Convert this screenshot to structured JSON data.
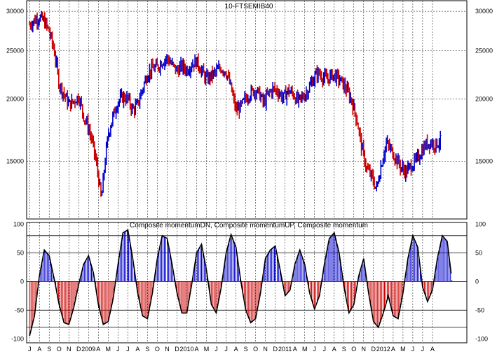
{
  "chart_data": [
    {
      "type": "ohlc",
      "title": "10-FTSEMIB40",
      "y_ticks": [
        15000,
        20000,
        25000,
        30000
      ],
      "ylim": [
        11500,
        31500
      ],
      "y_scale": "log",
      "grid": true,
      "up_color": "#0000cc",
      "down_color": "#cc0000",
      "series": [
        {
          "t": 0.0,
          "v": 28200
        },
        {
          "t": 0.5,
          "v": 28800
        },
        {
          "t": 1.0,
          "v": 29200
        },
        {
          "t": 1.5,
          "v": 28600
        },
        {
          "t": 2.0,
          "v": 27300
        },
        {
          "t": 2.5,
          "v": 25000
        },
        {
          "t": 3.0,
          "v": 21500
        },
        {
          "t": 3.5,
          "v": 20500
        },
        {
          "t": 4.0,
          "v": 19500
        },
        {
          "t": 4.5,
          "v": 19800
        },
        {
          "t": 5.0,
          "v": 20300
        },
        {
          "t": 5.5,
          "v": 18500
        },
        {
          "t": 6.0,
          "v": 17500
        },
        {
          "t": 6.5,
          "v": 16000
        },
        {
          "t": 7.0,
          "v": 14000
        },
        {
          "t": 7.3,
          "v": 12500
        },
        {
          "t": 7.6,
          "v": 14500
        },
        {
          "t": 8.0,
          "v": 17000
        },
        {
          "t": 8.5,
          "v": 18500
        },
        {
          "t": 9.0,
          "v": 19800
        },
        {
          "t": 9.5,
          "v": 20200
        },
        {
          "t": 10.0,
          "v": 20000
        },
        {
          "t": 10.5,
          "v": 19000
        },
        {
          "t": 11.0,
          "v": 19500
        },
        {
          "t": 11.5,
          "v": 21000
        },
        {
          "t": 12.0,
          "v": 22500
        },
        {
          "t": 12.5,
          "v": 23000
        },
        {
          "t": 13.0,
          "v": 23200
        },
        {
          "t": 13.5,
          "v": 23800
        },
        {
          "t": 14.0,
          "v": 24200
        },
        {
          "t": 14.5,
          "v": 23400
        },
        {
          "t": 15.0,
          "v": 22800
        },
        {
          "t": 15.5,
          "v": 23300
        },
        {
          "t": 16.0,
          "v": 22900
        },
        {
          "t": 16.5,
          "v": 23500
        },
        {
          "t": 17.0,
          "v": 23800
        },
        {
          "t": 17.5,
          "v": 22800
        },
        {
          "t": 18.0,
          "v": 21900
        },
        {
          "t": 18.5,
          "v": 22300
        },
        {
          "t": 19.0,
          "v": 22700
        },
        {
          "t": 19.5,
          "v": 23100
        },
        {
          "t": 20.0,
          "v": 22700
        },
        {
          "t": 20.5,
          "v": 21000
        },
        {
          "t": 21.0,
          "v": 19000
        },
        {
          "t": 21.5,
          "v": 19300
        },
        {
          "t": 22.0,
          "v": 20100
        },
        {
          "t": 22.5,
          "v": 20600
        },
        {
          "t": 23.0,
          "v": 20900
        },
        {
          "t": 23.5,
          "v": 20300
        },
        {
          "t": 23.8,
          "v": 19600
        },
        {
          "t": 24.3,
          "v": 20500
        },
        {
          "t": 24.8,
          "v": 21000
        },
        {
          "t": 25.3,
          "v": 20700
        },
        {
          "t": 25.8,
          "v": 20100
        },
        {
          "t": 26.3,
          "v": 20800
        },
        {
          "t": 26.8,
          "v": 20500
        },
        {
          "t": 27.3,
          "v": 19800
        },
        {
          "t": 27.8,
          "v": 20200
        },
        {
          "t": 28.3,
          "v": 20800
        },
        {
          "t": 28.8,
          "v": 21800
        },
        {
          "t": 29.3,
          "v": 22600
        },
        {
          "t": 29.8,
          "v": 22200
        },
        {
          "t": 30.3,
          "v": 21900
        },
        {
          "t": 30.8,
          "v": 22400
        },
        {
          "t": 31.3,
          "v": 22100
        },
        {
          "t": 31.8,
          "v": 21600
        },
        {
          "t": 32.3,
          "v": 20800
        },
        {
          "t": 32.8,
          "v": 19800
        },
        {
          "t": 33.3,
          "v": 18200
        },
        {
          "t": 33.8,
          "v": 16000
        },
        {
          "t": 34.3,
          "v": 14500
        },
        {
          "t": 34.8,
          "v": 14000
        },
        {
          "t": 35.3,
          "v": 13200
        },
        {
          "t": 35.8,
          "v": 14800
        },
        {
          "t": 36.3,
          "v": 16300
        },
        {
          "t": 36.8,
          "v": 15800
        },
        {
          "t": 37.3,
          "v": 15200
        },
        {
          "t": 37.8,
          "v": 14600
        },
        {
          "t": 38.3,
          "v": 14300
        },
        {
          "t": 38.8,
          "v": 14700
        },
        {
          "t": 39.3,
          "v": 15000
        },
        {
          "t": 39.8,
          "v": 15600
        },
        {
          "t": 40.3,
          "v": 16200
        },
        {
          "t": 40.8,
          "v": 16400
        },
        {
          "t": 41.3,
          "v": 16200
        },
        {
          "t": 41.8,
          "v": 16500
        }
      ]
    },
    {
      "type": "area",
      "title": "Composite momentumDN, Composite momentumUP, Composite momentum",
      "y_ticks": [
        -100,
        -50,
        0,
        50,
        100
      ],
      "ylim": [
        -107,
        103
      ],
      "reference_lines": [
        -80,
        -50,
        50,
        80
      ],
      "grid": true,
      "up_color": "#0000cc",
      "down_color": "#cc0000",
      "line_color": "#000000",
      "series": [
        {
          "t": 0.0,
          "v": -95
        },
        {
          "t": 0.5,
          "v": -60
        },
        {
          "t": 1.0,
          "v": 10
        },
        {
          "t": 1.5,
          "v": 55
        },
        {
          "t": 2.0,
          "v": 45
        },
        {
          "t": 2.5,
          "v": 5
        },
        {
          "t": 3.0,
          "v": -40
        },
        {
          "t": 3.5,
          "v": -72
        },
        {
          "t": 4.0,
          "v": -75
        },
        {
          "t": 4.5,
          "v": -45
        },
        {
          "t": 5.0,
          "v": -5
        },
        {
          "t": 5.5,
          "v": 30
        },
        {
          "t": 6.0,
          "v": 45
        },
        {
          "t": 6.5,
          "v": 15
        },
        {
          "t": 7.0,
          "v": -40
        },
        {
          "t": 7.5,
          "v": -75
        },
        {
          "t": 8.0,
          "v": -70
        },
        {
          "t": 8.5,
          "v": -30
        },
        {
          "t": 9.0,
          "v": 30
        },
        {
          "t": 9.5,
          "v": 85
        },
        {
          "t": 10.0,
          "v": 90
        },
        {
          "t": 10.5,
          "v": 40
        },
        {
          "t": 11.0,
          "v": -20
        },
        {
          "t": 11.5,
          "v": -60
        },
        {
          "t": 12.0,
          "v": -65
        },
        {
          "t": 12.5,
          "v": -20
        },
        {
          "t": 13.0,
          "v": 40
        },
        {
          "t": 13.5,
          "v": 80
        },
        {
          "t": 14.0,
          "v": 75
        },
        {
          "t": 14.5,
          "v": 30
        },
        {
          "t": 15.0,
          "v": -20
        },
        {
          "t": 15.5,
          "v": -55
        },
        {
          "t": 16.0,
          "v": -55
        },
        {
          "t": 16.5,
          "v": -5
        },
        {
          "t": 17.0,
          "v": 50
        },
        {
          "t": 17.5,
          "v": 65
        },
        {
          "t": 18.0,
          "v": 20
        },
        {
          "t": 18.5,
          "v": -40
        },
        {
          "t": 19.0,
          "v": -55
        },
        {
          "t": 19.5,
          "v": -10
        },
        {
          "t": 20.0,
          "v": 50
        },
        {
          "t": 20.5,
          "v": 82
        },
        {
          "t": 21.0,
          "v": 60
        },
        {
          "t": 21.5,
          "v": 0
        },
        {
          "t": 22.0,
          "v": -50
        },
        {
          "t": 22.5,
          "v": -72
        },
        {
          "t": 23.0,
          "v": -65
        },
        {
          "t": 23.5,
          "v": -20
        },
        {
          "t": 24.0,
          "v": 40
        },
        {
          "t": 24.5,
          "v": 55
        },
        {
          "t": 25.0,
          "v": 62
        },
        {
          "t": 25.5,
          "v": 20
        },
        {
          "t": 26.0,
          "v": -25
        },
        {
          "t": 26.5,
          "v": -15
        },
        {
          "t": 27.0,
          "v": 30
        },
        {
          "t": 27.5,
          "v": 55
        },
        {
          "t": 28.0,
          "v": 30
        },
        {
          "t": 28.5,
          "v": -20
        },
        {
          "t": 29.0,
          "v": -48
        },
        {
          "t": 29.5,
          "v": -25
        },
        {
          "t": 30.0,
          "v": 30
        },
        {
          "t": 30.5,
          "v": 75
        },
        {
          "t": 31.0,
          "v": 85
        },
        {
          "t": 31.5,
          "v": 50
        },
        {
          "t": 32.0,
          "v": -10
        },
        {
          "t": 32.5,
          "v": -55
        },
        {
          "t": 33.0,
          "v": -40
        },
        {
          "t": 33.5,
          "v": 10
        },
        {
          "t": 34.0,
          "v": 40
        },
        {
          "t": 34.5,
          "v": -20
        },
        {
          "t": 35.0,
          "v": -70
        },
        {
          "t": 35.5,
          "v": -80
        },
        {
          "t": 36.0,
          "v": -55
        },
        {
          "t": 36.5,
          "v": -25
        },
        {
          "t": 37.0,
          "v": -60
        },
        {
          "t": 37.5,
          "v": -65
        },
        {
          "t": 38.0,
          "v": -20
        },
        {
          "t": 38.5,
          "v": 40
        },
        {
          "t": 39.0,
          "v": 80
        },
        {
          "t": 39.5,
          "v": 60
        },
        {
          "t": 40.0,
          "v": -10
        },
        {
          "t": 40.5,
          "v": -35
        },
        {
          "t": 41.0,
          "v": -15
        },
        {
          "t": 41.5,
          "v": 40
        },
        {
          "t": 42.0,
          "v": 80
        },
        {
          "t": 42.5,
          "v": 70
        },
        {
          "t": 43.0,
          "v": 0
        }
      ]
    }
  ],
  "x_axis": {
    "labels": [
      "J",
      "A",
      "S",
      "O",
      "N",
      "D",
      "2009",
      "A",
      "M",
      "J",
      "J",
      "A",
      "S",
      "O",
      "N",
      "D",
      "2010",
      "A",
      "M",
      "J",
      "J",
      "A",
      "S",
      "O",
      "N",
      "D",
      "2011",
      "A",
      "M",
      "J",
      "J",
      "A",
      "S",
      "O",
      "N",
      "D",
      "2012",
      "A",
      "M",
      "J",
      "J",
      "A"
    ],
    "label_positions": [
      0,
      1,
      2,
      3,
      4,
      5,
      6,
      7,
      8,
      9,
      10,
      11,
      12,
      13,
      14,
      15,
      16,
      17,
      18,
      19,
      20,
      21,
      22,
      23,
      24,
      25,
      26,
      27,
      28,
      29,
      30,
      31,
      32,
      33,
      34,
      35,
      36,
      37,
      38,
      39,
      40,
      41
    ]
  }
}
